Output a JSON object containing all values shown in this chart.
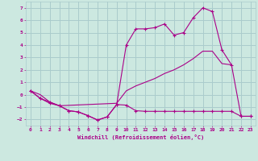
{
  "xlabel": "Windchill (Refroidissement éolien,°C)",
  "ylabel": "",
  "background_color": "#cce8e0",
  "grid_color": "#aacccc",
  "line_color": "#aa0088",
  "xlim": [
    -0.5,
    23.5
  ],
  "ylim": [
    -2.5,
    7.5
  ],
  "xticks": [
    0,
    1,
    2,
    3,
    4,
    5,
    6,
    7,
    8,
    9,
    10,
    11,
    12,
    13,
    14,
    15,
    16,
    17,
    18,
    19,
    20,
    21,
    22,
    23
  ],
  "yticks": [
    -2,
    -1,
    0,
    1,
    2,
    3,
    4,
    5,
    6,
    7
  ],
  "series1_x": [
    0,
    1,
    2,
    3,
    4,
    5,
    6,
    7,
    8,
    9,
    10,
    11,
    12,
    13,
    14,
    15,
    16,
    17,
    18,
    19,
    20,
    21,
    22,
    23
  ],
  "series1_y": [
    0.3,
    -0.3,
    -0.7,
    -0.9,
    -1.3,
    -1.4,
    -1.7,
    -2.05,
    -1.8,
    -0.8,
    -0.85,
    -1.3,
    -1.35,
    -1.35,
    -1.35,
    -1.35,
    -1.35,
    -1.35,
    -1.35,
    -1.35,
    -1.35,
    -1.35,
    -1.75,
    -1.75
  ],
  "series1_markers": [
    0,
    1,
    2,
    3,
    4,
    5,
    6,
    7,
    8,
    9,
    10,
    11,
    12,
    13,
    14,
    15,
    16,
    17,
    18,
    19,
    20,
    21,
    22,
    23
  ],
  "series2_x": [
    0,
    1,
    2,
    3,
    4,
    5,
    6,
    7,
    8,
    9,
    10,
    11,
    12,
    13,
    14,
    15,
    16,
    17,
    18,
    19,
    20,
    21,
    22,
    23
  ],
  "series2_y": [
    0.3,
    -0.3,
    -0.6,
    -0.9,
    -1.3,
    -1.4,
    -1.7,
    -2.05,
    -1.8,
    -0.8,
    4.0,
    5.3,
    5.3,
    5.4,
    5.7,
    4.8,
    5.0,
    6.2,
    7.0,
    6.7,
    3.6,
    2.4,
    -1.75,
    -1.75
  ],
  "series2_markers": [
    0,
    1,
    2,
    3,
    4,
    5,
    6,
    7,
    8,
    9,
    10,
    11,
    12,
    13,
    14,
    15,
    16,
    17,
    18,
    19,
    20,
    21,
    22,
    23
  ],
  "series3_x": [
    0,
    1,
    2,
    3,
    9,
    10,
    11,
    12,
    13,
    14,
    15,
    16,
    17,
    18,
    19,
    20,
    21
  ],
  "series3_y": [
    0.3,
    0.0,
    -0.6,
    -0.9,
    -0.7,
    0.3,
    0.7,
    1.0,
    1.3,
    1.7,
    2.0,
    2.4,
    2.9,
    3.5,
    3.5,
    2.5,
    2.4
  ]
}
